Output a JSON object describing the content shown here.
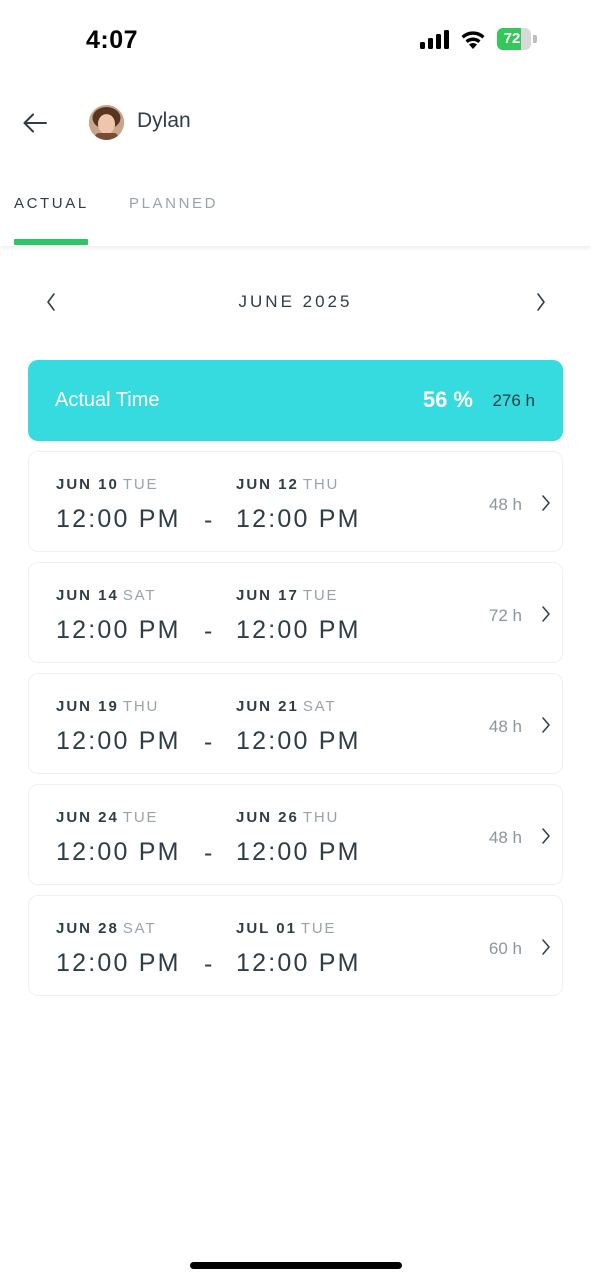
{
  "status_bar": {
    "time": "4:07",
    "battery_level": "72",
    "battery_percent": 72,
    "battery_color": "#34c759"
  },
  "header": {
    "back_icon": "arrow-left-icon",
    "user_name": "Dylan"
  },
  "tabs": [
    {
      "label": "ACTUAL",
      "active": true
    },
    {
      "label": "PLANNED",
      "active": false
    }
  ],
  "month_nav": {
    "label": "JUNE 2025",
    "prev_icon": "chevron-left-icon",
    "next_icon": "chevron-right-icon"
  },
  "summary": {
    "label": "Actual Time",
    "percent": "56 %",
    "hours": "276 h",
    "color": "#36dbe0"
  },
  "entries": [
    {
      "start_date": "JUN 10",
      "start_weekday": "TUE",
      "start_time": "12:00 PM",
      "separator": "-",
      "end_date": "JUN 12",
      "end_weekday": "THU",
      "end_time": "12:00 PM",
      "hours": "48 h"
    },
    {
      "start_date": "JUN 14",
      "start_weekday": "SAT",
      "start_time": "12:00 PM",
      "separator": "-",
      "end_date": "JUN 17",
      "end_weekday": "TUE",
      "end_time": "12:00 PM",
      "hours": "72 h"
    },
    {
      "start_date": "JUN 19",
      "start_weekday": "THU",
      "start_time": "12:00 PM",
      "separator": "-",
      "end_date": "JUN 21",
      "end_weekday": "SAT",
      "end_time": "12:00 PM",
      "hours": "48 h"
    },
    {
      "start_date": "JUN 24",
      "start_weekday": "TUE",
      "start_time": "12:00 PM",
      "separator": "-",
      "end_date": "JUN 26",
      "end_weekday": "THU",
      "end_time": "12:00 PM",
      "hours": "48 h"
    },
    {
      "start_date": "JUN 28",
      "start_weekday": "SAT",
      "start_time": "12:00 PM",
      "separator": "-",
      "end_date": "JUL 01",
      "end_weekday": "TUE",
      "end_time": "12:00 PM",
      "hours": "60 h"
    }
  ],
  "accent_color": "#2ec365"
}
